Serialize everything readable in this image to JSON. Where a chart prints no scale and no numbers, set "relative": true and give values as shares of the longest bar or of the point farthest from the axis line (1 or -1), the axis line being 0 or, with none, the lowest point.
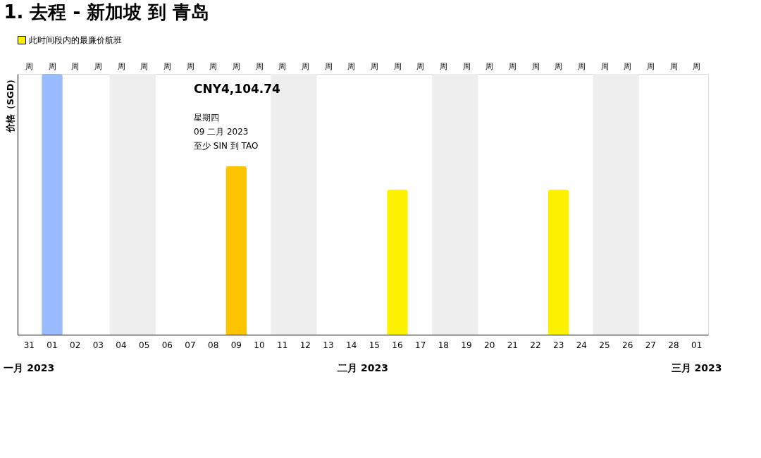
{
  "chart_data": {
    "type": "bar",
    "title": "1. 去程 - 新加坡 到 青岛",
    "ylabel": "价格（SGD）",
    "relative": true,
    "legend": "top left",
    "categories": [
      "31",
      "01",
      "02",
      "03",
      "04",
      "05",
      "06",
      "07",
      "08",
      "09",
      "10",
      "11",
      "12",
      "13",
      "14",
      "15",
      "16",
      "17",
      "18",
      "19",
      "20",
      "21",
      "22",
      "23",
      "24",
      "25",
      "26",
      "27",
      "28",
      "01"
    ],
    "series": [
      {
        "name": "此时间段内的最廉价航班",
        "color": "#fff200",
        "values": [
          null,
          1.0,
          null,
          null,
          null,
          null,
          null,
          null,
          null,
          0.646,
          null,
          null,
          null,
          null,
          null,
          null,
          0.556,
          null,
          null,
          null,
          null,
          null,
          null,
          0.556,
          null,
          null,
          null,
          null,
          null,
          null
        ],
        "colors": [
          null,
          "#99bbff",
          null,
          null,
          null,
          null,
          null,
          null,
          null,
          "#ffc400",
          null,
          null,
          null,
          null,
          null,
          null,
          "#fff200",
          null,
          null,
          null,
          null,
          null,
          null,
          "#fff200",
          null,
          null,
          null,
          null,
          null,
          null
        ]
      }
    ],
    "bands": [
      {
        "axis": "x",
        "from": "04",
        "to": "05",
        "color": "#eeeeee"
      },
      {
        "axis": "x",
        "from": "11",
        "to": "12",
        "color": "#eeeeee"
      },
      {
        "axis": "x",
        "from": "18",
        "to": "19",
        "color": "#eeeeee"
      },
      {
        "axis": "x",
        "from": "25",
        "to": "26",
        "color": "#eeeeee"
      }
    ],
    "annotations": [
      "CNY4,104.74",
      "星期四",
      "09 二月 2023",
      "至少 SIN 到 TAO",
      "一月 2023",
      "二月 2023",
      "三月 2023",
      "周",
      "周",
      "周",
      "周",
      "周",
      "周",
      "周",
      "周",
      "周",
      "周",
      "周",
      "周",
      "周",
      "周",
      "周",
      "周",
      "周",
      "周",
      "周",
      "周",
      "周",
      "周",
      "周",
      "周",
      "周",
      "周",
      "周",
      "周",
      "周",
      "周"
    ]
  }
}
